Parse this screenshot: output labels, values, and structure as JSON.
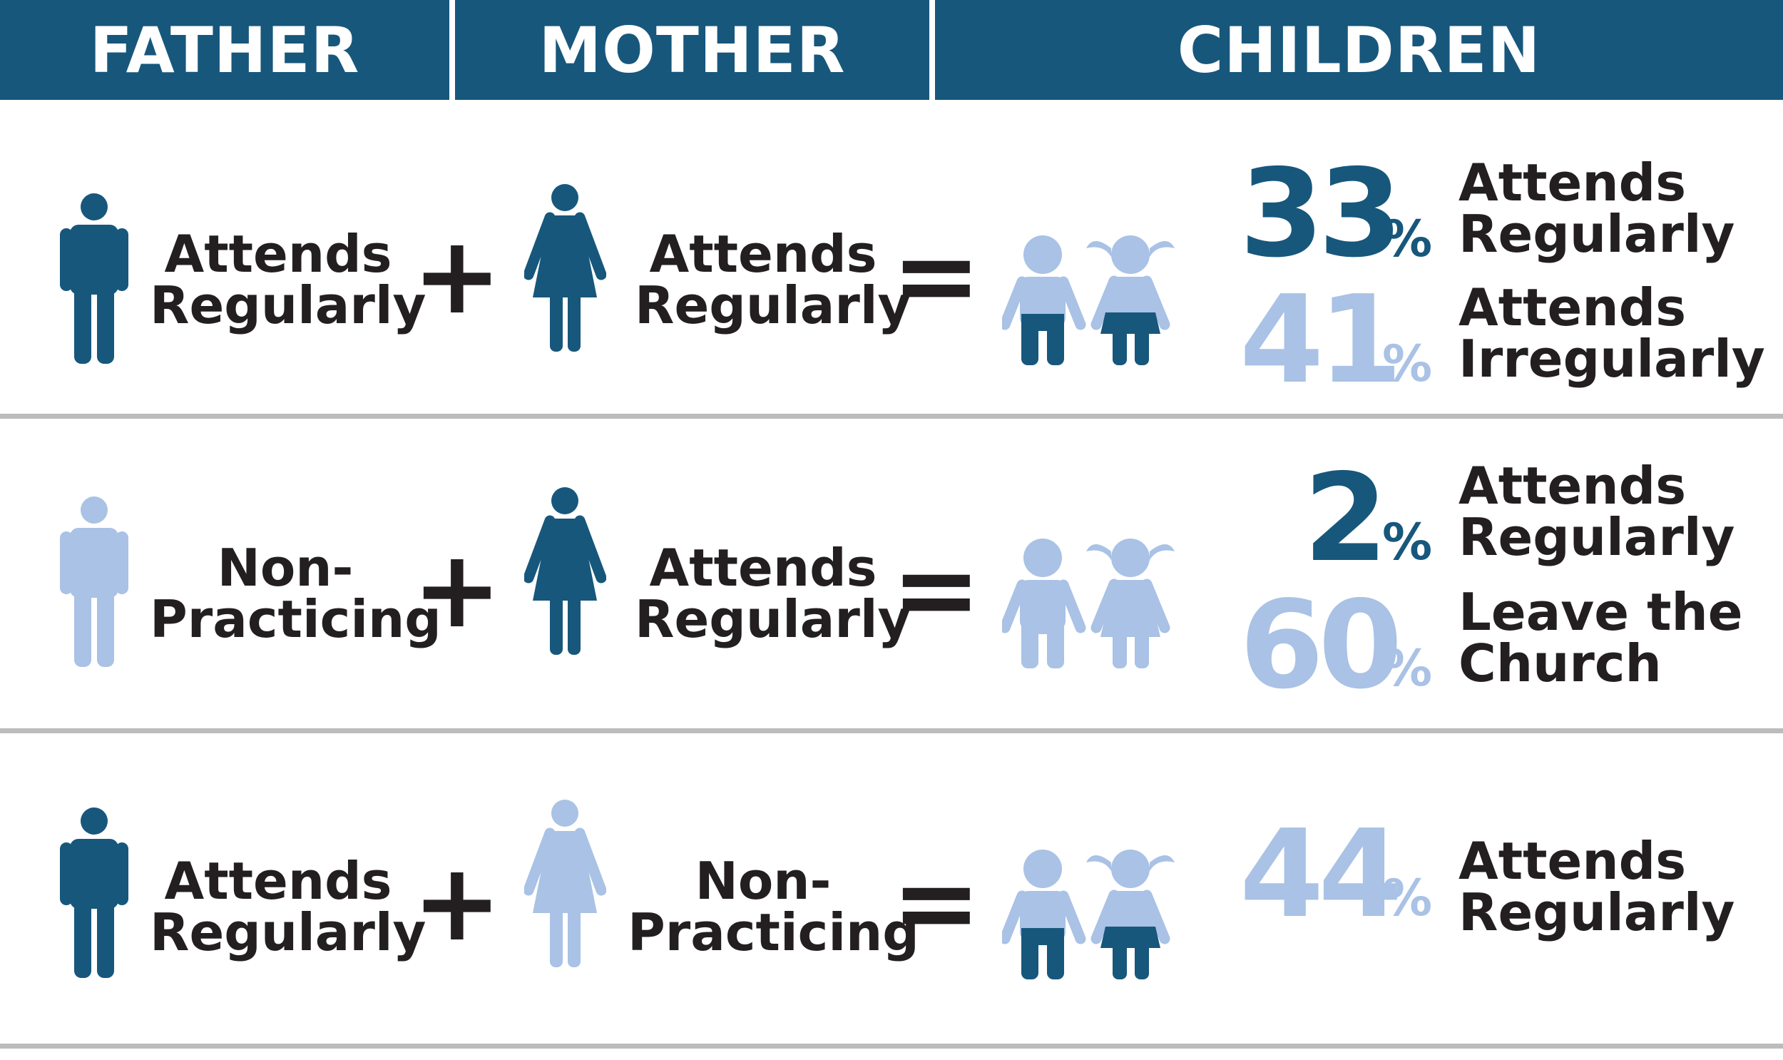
{
  "colors": {
    "dark": "#17577c",
    "light": "#a9c2e5",
    "text": "#231f20",
    "divider": "#bcbcbc"
  },
  "headers": {
    "father": "FATHER",
    "mother": "MOTHER",
    "children": "CHILDREN"
  },
  "operators": {
    "plus": "+",
    "equals": "="
  },
  "rows": [
    {
      "father": {
        "line1": "Attends",
        "line2": "Regularly",
        "tone": "dark"
      },
      "mother": {
        "line1": "Attends",
        "line2": "Regularly",
        "tone": "dark"
      },
      "children_tone": "split",
      "results": [
        {
          "value": "33",
          "sign": "%",
          "line1": "Attends",
          "line2": "Regularly",
          "tone": "dark"
        },
        {
          "value": "41",
          "sign": "%",
          "line1": "Attends",
          "line2": "Irregularly",
          "tone": "light"
        }
      ]
    },
    {
      "father": {
        "line1": "Non-",
        "line2": "Practicing",
        "tone": "light"
      },
      "mother": {
        "line1": "Attends",
        "line2": "Regularly",
        "tone": "dark"
      },
      "children_tone": "light",
      "results": [
        {
          "value": "2",
          "sign": "%",
          "line1": "Attends",
          "line2": "Regularly",
          "tone": "dark"
        },
        {
          "value": "60",
          "sign": "%",
          "line1": "Leave the",
          "line2": "Church",
          "tone": "light"
        }
      ]
    },
    {
      "father": {
        "line1": "Attends",
        "line2": "Regularly",
        "tone": "dark"
      },
      "mother": {
        "line1": "Non-",
        "line2": "Practicing",
        "tone": "light"
      },
      "children_tone": "split",
      "results": [
        {
          "value": "44",
          "sign": "%",
          "line1": "Attends",
          "line2": "Regularly",
          "tone": "light"
        }
      ]
    }
  ]
}
